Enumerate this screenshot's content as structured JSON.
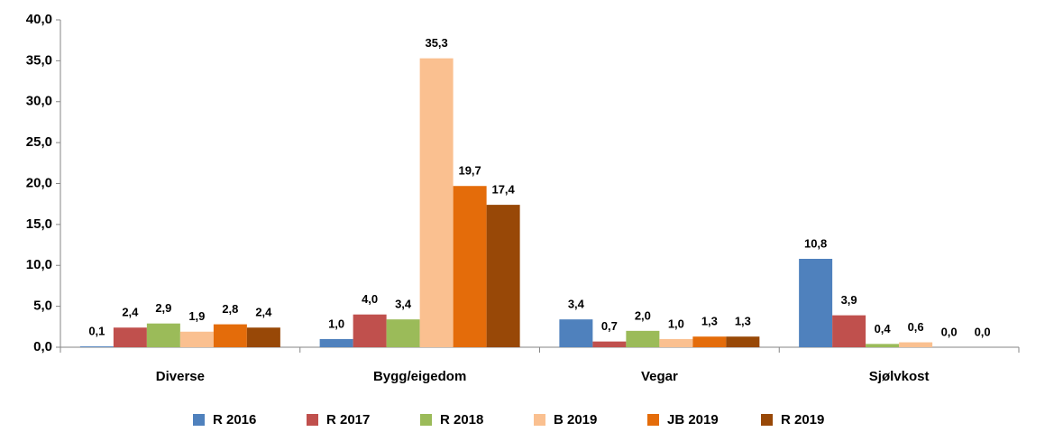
{
  "chart_data": {
    "type": "bar",
    "categories": [
      "Diverse",
      "Bygg/eigedom",
      "Vegar",
      "Sjølvkost"
    ],
    "series": [
      {
        "name": "R 2016",
        "color": "#4f81bd",
        "values": [
          0.1,
          1.0,
          3.4,
          10.8
        ],
        "value_labels": [
          "0,1",
          "1,0",
          "3,4",
          "10,8"
        ]
      },
      {
        "name": "R 2017",
        "color": "#c0504d",
        "values": [
          2.4,
          4.0,
          0.7,
          3.9
        ],
        "value_labels": [
          "2,4",
          "4,0",
          "0,7",
          "3,9"
        ]
      },
      {
        "name": "R 2018",
        "color": "#9bbb59",
        "values": [
          2.9,
          3.4,
          2.0,
          0.4
        ],
        "value_labels": [
          "2,9",
          "3,4",
          "2,0",
          "0,4"
        ]
      },
      {
        "name": "B 2019",
        "color": "#fac090",
        "values": [
          1.9,
          35.3,
          1.0,
          0.6
        ],
        "value_labels": [
          "1,9",
          "35,3",
          "1,0",
          "0,6"
        ]
      },
      {
        "name": "JB 2019",
        "color": "#e46c0a",
        "values": [
          2.8,
          19.7,
          1.3,
          0.0
        ],
        "value_labels": [
          "2,8",
          "19,7",
          "1,3",
          "0,0"
        ]
      },
      {
        "name": "R 2019",
        "color": "#984807",
        "values": [
          2.4,
          17.4,
          1.3,
          0.0
        ],
        "value_labels": [
          "2,4",
          "17,4",
          "1,3",
          "0,0"
        ]
      }
    ],
    "ylim": [
      0,
      40
    ],
    "yticks": [
      {
        "value": 0,
        "label": "0,0"
      },
      {
        "value": 5,
        "label": "5,0"
      },
      {
        "value": 10,
        "label": "10,0"
      },
      {
        "value": 15,
        "label": "15,0"
      },
      {
        "value": 20,
        "label": "20,0"
      },
      {
        "value": 25,
        "label": "25,0"
      },
      {
        "value": 30,
        "label": "30,0"
      },
      {
        "value": 35,
        "label": "35,0"
      },
      {
        "value": 40,
        "label": "40,0"
      }
    ],
    "grid": false,
    "legend": "bottom"
  }
}
